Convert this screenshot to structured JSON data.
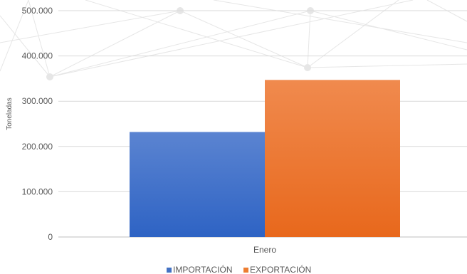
{
  "chart_data": {
    "type": "bar",
    "title": "",
    "xlabel": "",
    "ylabel": "Toneladas",
    "categories": [
      "Enero"
    ],
    "series": [
      {
        "name": "IMPORTACIÓN",
        "values": [
          232000
        ],
        "color": "#4472c4"
      },
      {
        "name": "EXPORTACIÓN",
        "values": [
          347000
        ],
        "color": "#ed7d31"
      }
    ],
    "ylim": [
      0,
      500000
    ],
    "yticks": [
      0,
      100000,
      200000,
      300000,
      400000,
      500000
    ],
    "ytick_labels": [
      "0",
      "100.000",
      "200.000",
      "300.000",
      "400.000",
      "500.000"
    ],
    "grid": true,
    "legend_position": "bottom"
  }
}
